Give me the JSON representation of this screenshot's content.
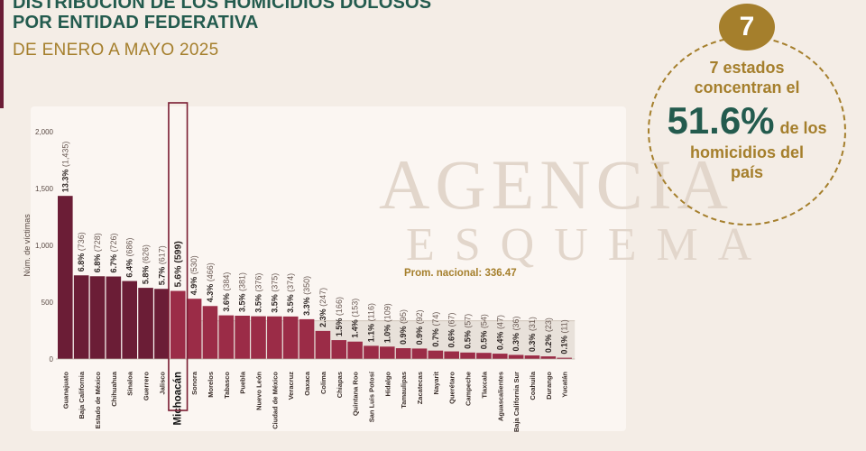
{
  "title_line1": "DISTRIBUCIÓN DE LOS HOMICIDIOS DOLOSOS",
  "title_line2": "POR ENTIDAD FEDERATIVA",
  "subtitle": "DE ENERO A MAYO 2025",
  "watermark_line1": "AGENCIA",
  "watermark_line2": "ESQUEMA",
  "callout": {
    "number": "7",
    "line1": "7 estados",
    "line2": "concentran el",
    "big": "51.6%",
    "after_big": "de los",
    "line4": "homicidios del",
    "line5": "país"
  },
  "colors": {
    "top_bars": "#6b1d36",
    "other_bars": "#9b2c47",
    "green": "#235b4e",
    "gold": "#a57f2c"
  },
  "chart_data": {
    "type": "bar",
    "ylabel": "Núm. de víctimas",
    "ylim": [
      0,
      2000
    ],
    "yticks": [
      0,
      500,
      1000,
      1500,
      2000
    ],
    "ytick_labels": [
      "0",
      "500",
      "1,000",
      "1,500",
      "2,000"
    ],
    "average_label": "Prom. nacional: 336.47",
    "average_value": 336.47,
    "highlighted_category": "Michoacán",
    "top_group_count": 7,
    "categories": [
      "Guanajuato",
      "Baja California",
      "Estado de México",
      "Chihuahua",
      "Sinaloa",
      "Guerrero",
      "Jalisco",
      "Michoacán",
      "Sonora",
      "Morelos",
      "Tabasco",
      "Puebla",
      "Nuevo León",
      "Ciudad de México",
      "Veracruz",
      "Oaxaca",
      "Colima",
      "Chiapas",
      "Quintana Roo",
      "San Luis Potosí",
      "Hidalgo",
      "Tamaulipas",
      "Zacatecas",
      "Nayarit",
      "Querétaro",
      "Campeche",
      "Tlaxcala",
      "Aguascalientes",
      "Baja California Sur",
      "Coahuila",
      "Durango",
      "Yucatán"
    ],
    "values": [
      1435,
      736,
      728,
      726,
      686,
      626,
      617,
      599,
      530,
      466,
      384,
      381,
      376,
      375,
      374,
      350,
      247,
      166,
      153,
      116,
      109,
      95,
      92,
      74,
      67,
      57,
      54,
      47,
      36,
      31,
      23,
      11
    ],
    "percent_labels": [
      "13.3%",
      "6.8%",
      "6.8%",
      "6.7%",
      "6.4%",
      "5.8%",
      "5.7%",
      "5.6%",
      "4.9%",
      "4.3%",
      "3.6%",
      "3.5%",
      "3.5%",
      "3.5%",
      "3.5%",
      "3.3%",
      "2.3%",
      "1.5%",
      "1.4%",
      "1.1%",
      "1.0%",
      "0.9%",
      "0.9%",
      "0.7%",
      "0.6%",
      "0.5%",
      "0.5%",
      "0.4%",
      "0.3%",
      "0.3%",
      "0.2%",
      "0.1%"
    ],
    "value_labels": [
      "(1,435)",
      "(736)",
      "(728)",
      "(726)",
      "(686)",
      "(626)",
      "(617)",
      "(599)",
      "(530)",
      "(466)",
      "(384)",
      "(381)",
      "(376)",
      "(375)",
      "(374)",
      "(350)",
      "(247)",
      "(166)",
      "(153)",
      "(116)",
      "(109)",
      "(95)",
      "(92)",
      "(74)",
      "(67)",
      "(57)",
      "(54)",
      "(47)",
      "(36)",
      "(31)",
      "(23)",
      "(11)"
    ]
  }
}
